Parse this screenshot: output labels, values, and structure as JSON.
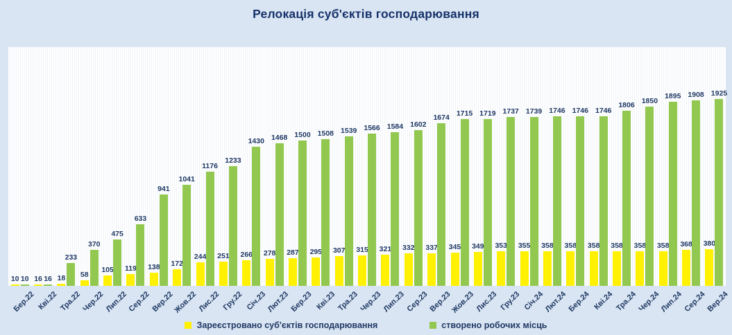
{
  "title": "Релокація суб'єктів господарювання",
  "colors": {
    "background": "#d9e5f2",
    "panel": "#ffffff",
    "panel_stripe": "#eff3f8",
    "series_registered": "#fff101",
    "series_jobs": "#92c850",
    "text_navy": "#1f3864",
    "title_navy": "#17316b"
  },
  "legend": {
    "registered": "Зареєстровано суб'єктів господарювання",
    "jobs": "створено робочих місць"
  },
  "chart_data": {
    "type": "bar",
    "title": "Релокація суб'єктів господарювання",
    "xlabel": "",
    "ylabel": "",
    "ylim": [
      0,
      1925
    ],
    "grid": false,
    "legend_position": "bottom",
    "value_labels": true,
    "categories": [
      "Бер.22",
      "Кві.22",
      "Тра.22",
      "Чер.22",
      "Лип.22",
      "Сер.22",
      "Вер.22",
      "Жов.22",
      "Лис.22",
      "Гру.22",
      "Січ.23",
      "Лют.23",
      "Бер.23",
      "Кві.23",
      "Тра.23",
      "Чер.23",
      "Лип.23",
      "Сер.23",
      "Вер.23",
      "Жов.23",
      "Лис.23",
      "Гру.23",
      "Січ.24",
      "Лют.24",
      "Бер.24",
      "Кві.24",
      "Тра.24",
      "Чер.24",
      "Лип.24",
      "Сер.24",
      "Вер.24"
    ],
    "series": [
      {
        "name": "Зареєстровано суб'єктів господарювання",
        "color": "#fff101",
        "values": [
          10,
          16,
          18,
          58,
          105,
          119,
          138,
          172,
          244,
          251,
          266,
          278,
          287,
          295,
          307,
          315,
          321,
          332,
          337,
          345,
          349,
          353,
          355,
          358,
          358,
          358,
          358,
          358,
          358,
          368,
          380
        ]
      },
      {
        "name": "створено робочих місць",
        "color": "#92c850",
        "values": [
          10,
          16,
          233,
          370,
          475,
          633,
          941,
          1041,
          1176,
          1233,
          1430,
          1468,
          1500,
          1508,
          1539,
          1566,
          1584,
          1602,
          1674,
          1715,
          1719,
          1737,
          1739,
          1746,
          1746,
          1746,
          1806,
          1850,
          1895,
          1908,
          1925
        ]
      }
    ]
  }
}
